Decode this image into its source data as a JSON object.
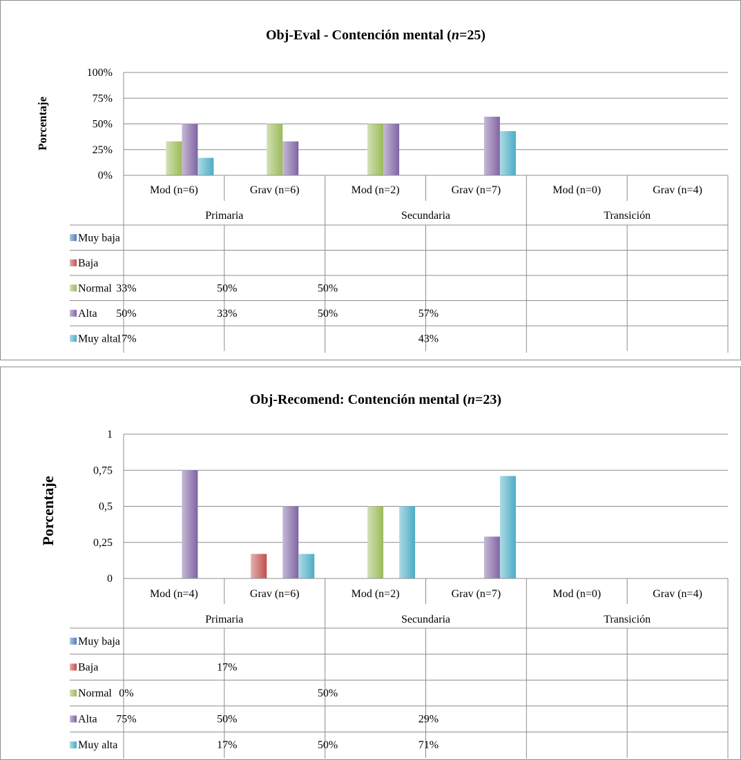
{
  "chart_data": [
    {
      "type": "bar",
      "title_prefix": "Obj-Eval - Contención mental (",
      "title_n": "n",
      "title_suffix": "=25)",
      "ylabel": "Porcentaje",
      "yticks": [
        "0%",
        "25%",
        "50%",
        "75%",
        "100%"
      ],
      "ylim": [
        0,
        1
      ],
      "grid": true,
      "groups": [
        "Primaria",
        "Secundaria",
        "Transición"
      ],
      "categories": [
        "Mod (n=6)",
        "Grav (n=6)",
        "Mod (n=2)",
        "Grav (n=7)",
        "Mod (n=0)",
        "Grav (n=4)"
      ],
      "series": [
        {
          "name": "Muy baja",
          "color": "#4f81bd",
          "values": [
            null,
            null,
            null,
            null,
            null,
            null
          ],
          "labels": [
            "",
            "",
            "",
            "",
            "",
            ""
          ]
        },
        {
          "name": "Baja",
          "color": "#c0504d",
          "values": [
            null,
            null,
            null,
            null,
            null,
            null
          ],
          "labels": [
            "",
            "",
            "",
            "",
            "",
            ""
          ]
        },
        {
          "name": "Normal",
          "color": "#9bbb59",
          "values": [
            0.33,
            0.5,
            0.5,
            null,
            null,
            null
          ],
          "labels": [
            "33%",
            "50%",
            "50%",
            "",
            "",
            ""
          ]
        },
        {
          "name": "Alta",
          "color": "#8064a2",
          "values": [
            0.5,
            0.33,
            0.5,
            0.57,
            null,
            null
          ],
          "labels": [
            "50%",
            "33%",
            "50%",
            "57%",
            "",
            ""
          ]
        },
        {
          "name": "Muy alta",
          "color": "#4bacc6",
          "values": [
            0.17,
            null,
            null,
            0.43,
            null,
            null
          ],
          "labels": [
            "17%",
            "",
            "",
            "43%",
            "",
            ""
          ]
        }
      ]
    },
    {
      "type": "bar",
      "title_prefix": "Obj-Recomend: Contención mental (",
      "title_n": "n",
      "title_suffix": "=23)",
      "ylabel": "Porcentaje",
      "yticks": [
        "0",
        "0,25",
        "0,5",
        "0,75",
        "1"
      ],
      "ylim": [
        0,
        1
      ],
      "grid": true,
      "groups": [
        "Primaria",
        "Secundaria",
        "Transición"
      ],
      "categories": [
        "Mod (n=4)",
        "Grav (n=6)",
        "Mod (n=2)",
        "Grav (n=7)",
        "Mod (n=0)",
        "Grav (n=4)"
      ],
      "series": [
        {
          "name": "Muy baja",
          "color": "#4f81bd",
          "values": [
            null,
            null,
            null,
            null,
            null,
            null
          ],
          "labels": [
            "",
            "",
            "",
            "",
            "",
            ""
          ]
        },
        {
          "name": "Baja",
          "color": "#c0504d",
          "values": [
            null,
            0.17,
            null,
            null,
            null,
            null
          ],
          "labels": [
            "",
            "17%",
            "",
            "",
            "",
            ""
          ]
        },
        {
          "name": "Normal",
          "color": "#9bbb59",
          "values": [
            0,
            null,
            0.5,
            null,
            null,
            null
          ],
          "labels": [
            "0%",
            "",
            "50%",
            "",
            "",
            ""
          ]
        },
        {
          "name": "Alta",
          "color": "#8064a2",
          "values": [
            0.75,
            0.5,
            null,
            0.29,
            null,
            null
          ],
          "labels": [
            "75%",
            "50%",
            "",
            "29%",
            "",
            ""
          ]
        },
        {
          "name": "Muy alta",
          "color": "#4bacc6",
          "values": [
            null,
            0.17,
            0.5,
            0.71,
            null,
            null
          ],
          "labels": [
            "",
            "17%",
            "50%",
            "71%",
            "",
            ""
          ]
        }
      ]
    }
  ]
}
